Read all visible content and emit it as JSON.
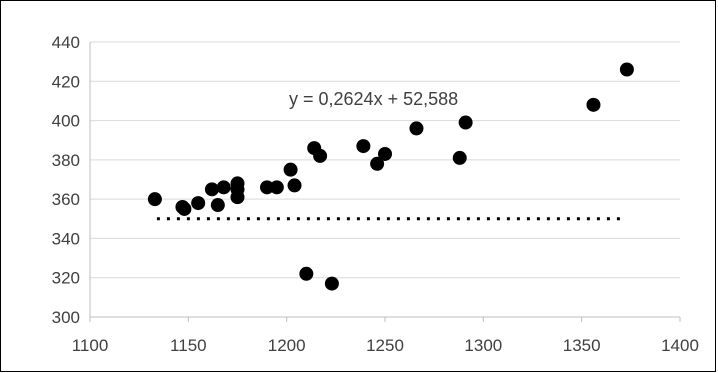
{
  "chart_data": {
    "type": "scatter",
    "title": "",
    "xlabel": "",
    "ylabel": "",
    "xlim": [
      1100,
      1400
    ],
    "ylim": [
      300,
      440
    ],
    "xticks": [
      1100,
      1150,
      1200,
      1250,
      1300,
      1350,
      1400
    ],
    "yticks": [
      300,
      320,
      340,
      360,
      380,
      400,
      420,
      440
    ],
    "grid": "horizontal",
    "legend": "none",
    "annotation": "y = 0,2624x + 52,588",
    "colors": {
      "points": "#000000",
      "grid": "#d9d9d9",
      "axis": "#bfbfbf",
      "text": "#404040",
      "dotted_line": "#000000"
    },
    "series": [
      {
        "points": [
          {
            "x": 1133,
            "y": 360
          },
          {
            "x": 1147,
            "y": 356
          },
          {
            "x": 1148,
            "y": 355
          },
          {
            "x": 1155,
            "y": 358
          },
          {
            "x": 1162,
            "y": 365
          },
          {
            "x": 1165,
            "y": 357
          },
          {
            "x": 1168,
            "y": 366
          },
          {
            "x": 1175,
            "y": 368
          },
          {
            "x": 1175,
            "y": 365
          },
          {
            "x": 1175,
            "y": 361
          },
          {
            "x": 1190,
            "y": 366
          },
          {
            "x": 1195,
            "y": 366
          },
          {
            "x": 1202,
            "y": 375
          },
          {
            "x": 1204,
            "y": 367
          },
          {
            "x": 1210,
            "y": 322
          },
          {
            "x": 1214,
            "y": 386
          },
          {
            "x": 1217,
            "y": 382
          },
          {
            "x": 1223,
            "y": 317
          },
          {
            "x": 1239,
            "y": 387
          },
          {
            "x": 1246,
            "y": 378
          },
          {
            "x": 1250,
            "y": 383
          },
          {
            "x": 1266,
            "y": 396
          },
          {
            "x": 1288,
            "y": 381
          },
          {
            "x": 1291,
            "y": 399
          },
          {
            "x": 1356,
            "y": 408
          },
          {
            "x": 1373,
            "y": 426
          }
        ]
      }
    ],
    "reference_line": {
      "y": 350,
      "x_from": 1133,
      "x_to": 1373,
      "style": "dotted"
    }
  }
}
